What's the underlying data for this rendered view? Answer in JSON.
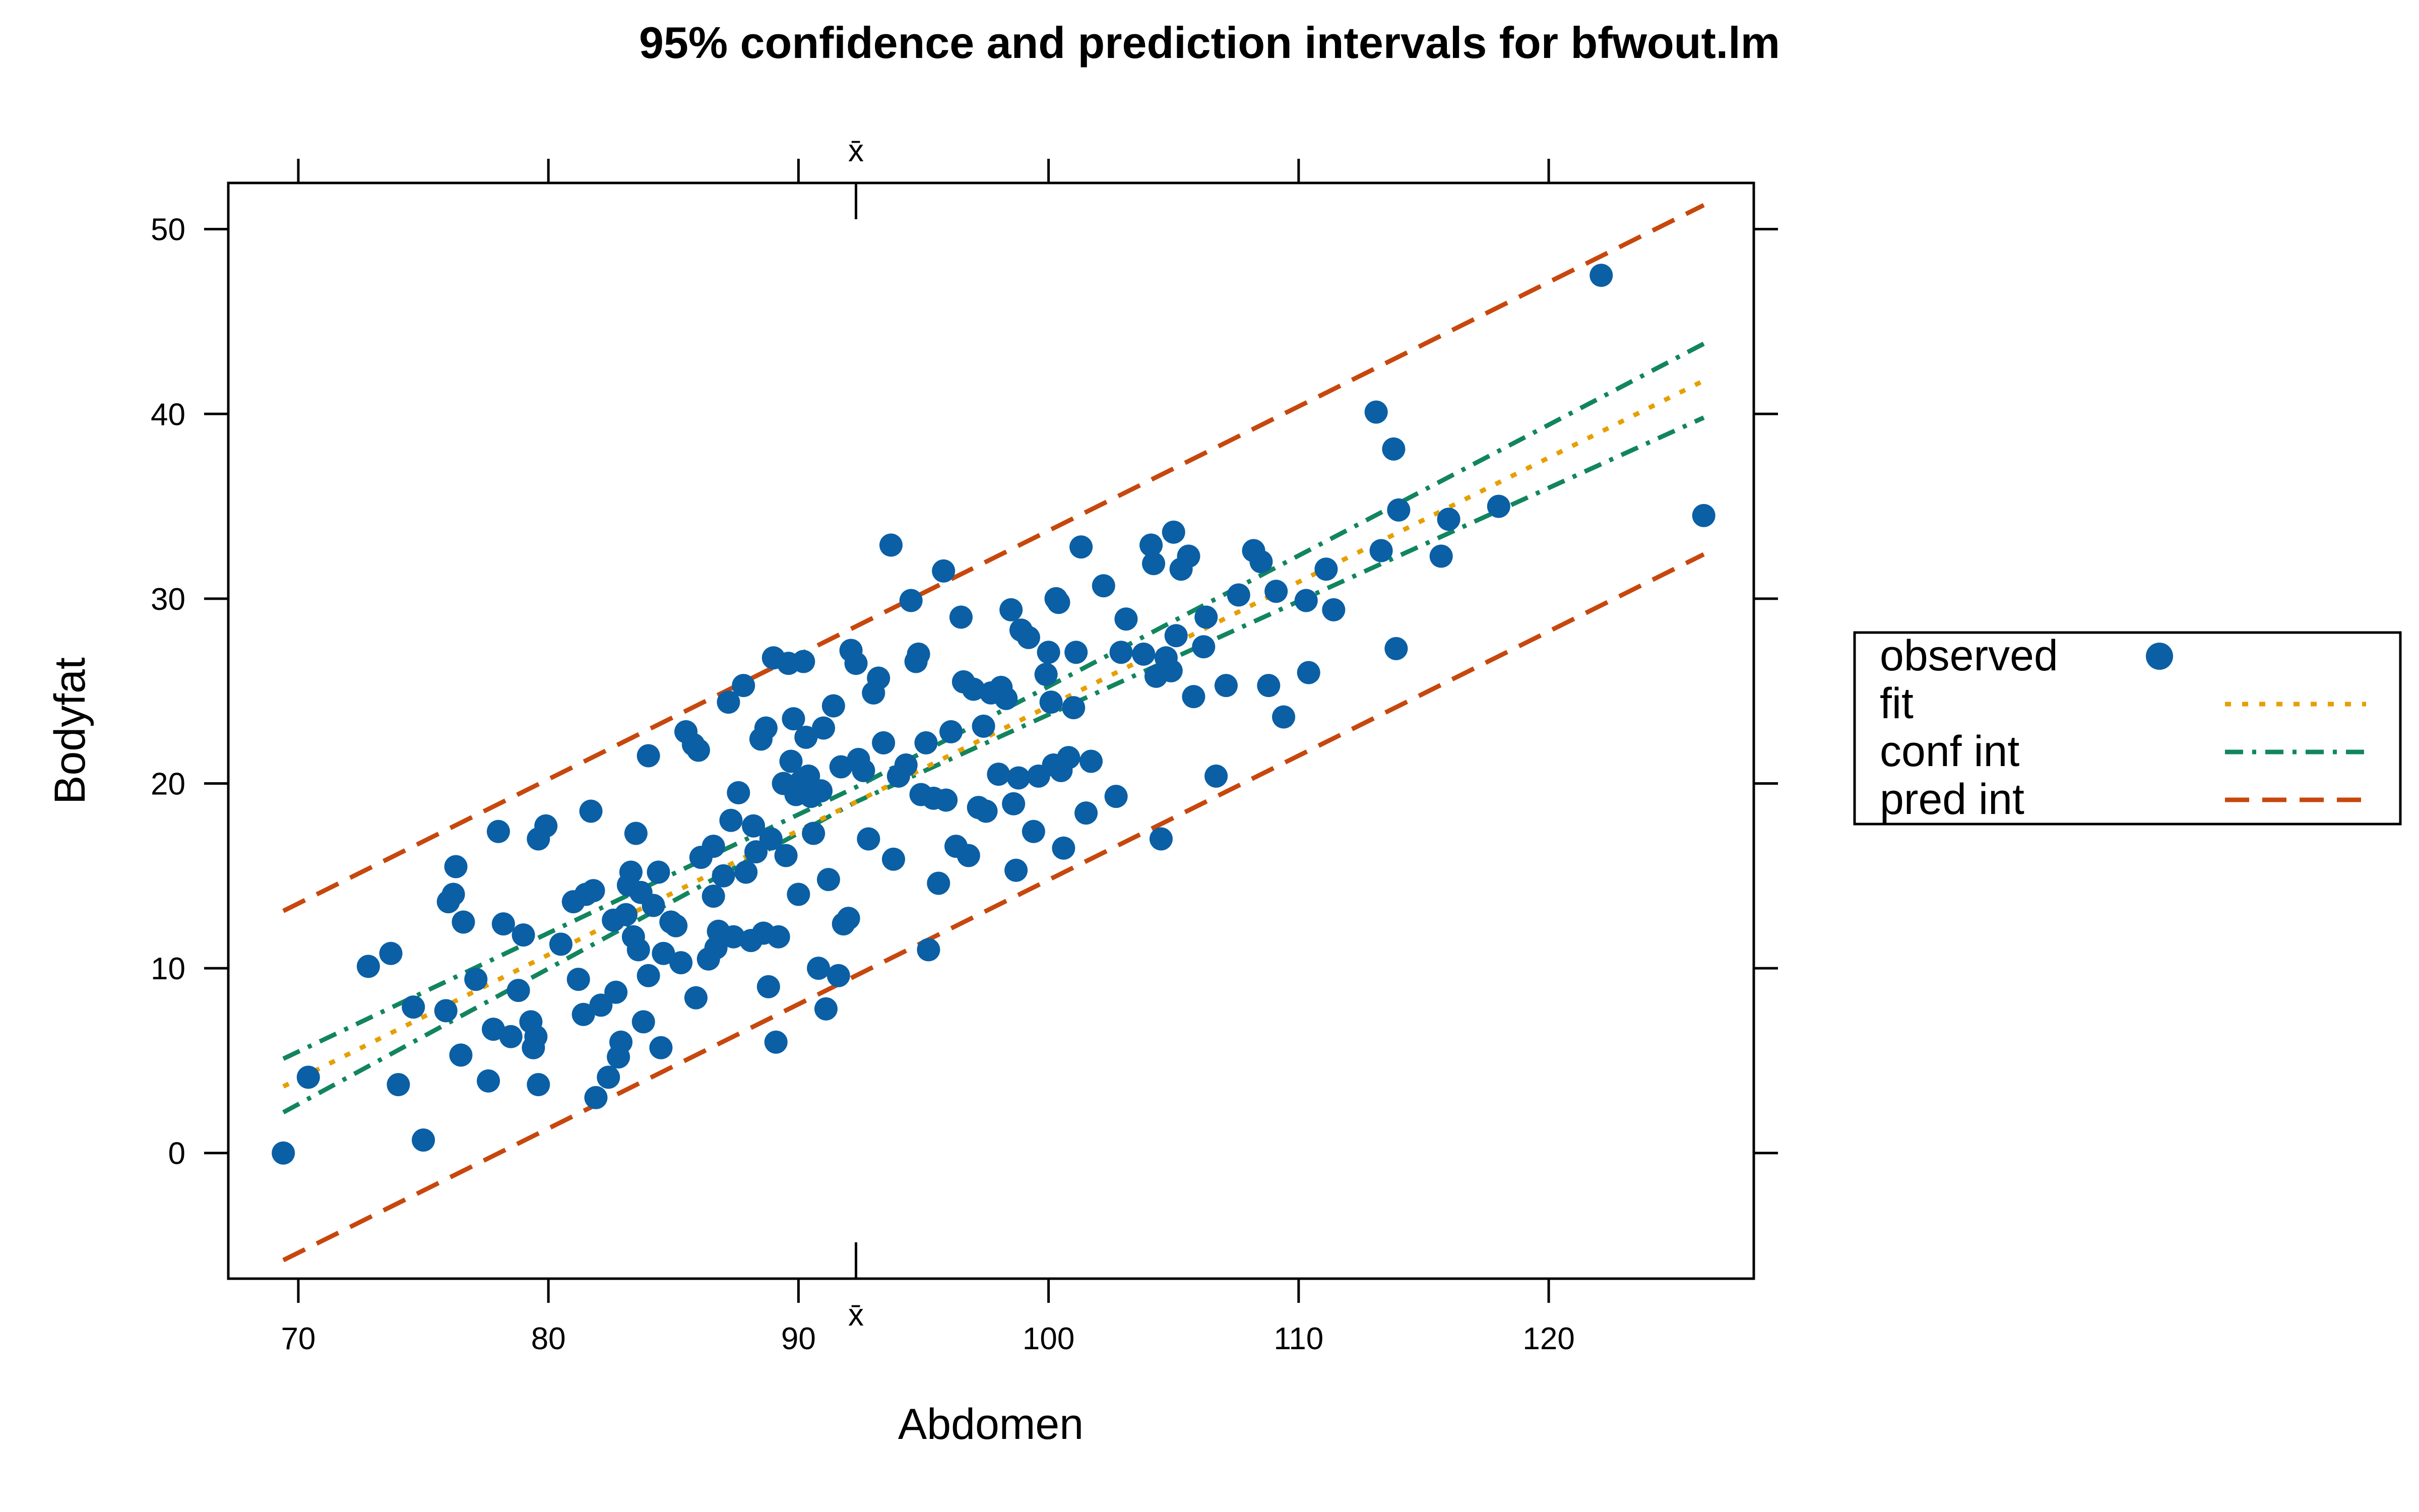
{
  "chart_data": {
    "type": "scatter",
    "title": "95% confidence and prediction intervals for bfwout.lm",
    "xlabel": "Abdomen",
    "ylabel": "Bodyfat",
    "xlim": [
      67.2,
      128.2
    ],
    "ylim": [
      -6.8,
      52.5
    ],
    "xticks": [
      70,
      80,
      90,
      100,
      110,
      120
    ],
    "yticks": [
      0,
      10,
      20,
      30,
      40,
      50
    ],
    "xbar": {
      "label": "x̄",
      "value": 92.3
    },
    "colors": {
      "observed": "#0b5fa5",
      "fit": "#e69f00",
      "conf": "#12855e",
      "pred": "#c7470d"
    },
    "legend": {
      "placement": "right",
      "entries": [
        {
          "key": "observed",
          "label": "observed"
        },
        {
          "key": "fit",
          "label": "fit"
        },
        {
          "key": "conf",
          "label": "conf int"
        },
        {
          "key": "pred",
          "label": "pred int"
        }
      ]
    },
    "lines": {
      "fit": {
        "x": [
          69.4,
          126.2
        ],
        "y": [
          3.6,
          41.8
        ]
      },
      "conf_lower": {
        "x": [
          69.4,
          92.3,
          126.2
        ],
        "y": [
          2.2,
          19.0,
          39.8
        ]
      },
      "conf_upper": {
        "x": [
          69.4,
          92.3,
          126.2
        ],
        "y": [
          5.1,
          19.8,
          43.8
        ]
      },
      "pred_lower": {
        "x": [
          69.4,
          126.2
        ],
        "y": [
          -5.8,
          32.4
        ]
      },
      "pred_upper": {
        "x": [
          69.4,
          126.2
        ],
        "y": [
          13.1,
          51.3
        ]
      }
    },
    "observed": [
      [
        69.4,
        0.0
      ],
      [
        70.4,
        4.1
      ],
      [
        72.8,
        10.1
      ],
      [
        73.7,
        10.8
      ],
      [
        74.0,
        3.7
      ],
      [
        74.6,
        7.9
      ],
      [
        75.0,
        0.7
      ],
      [
        75.9,
        7.7
      ],
      [
        76.0,
        13.6
      ],
      [
        76.2,
        14.0
      ],
      [
        76.3,
        15.5
      ],
      [
        76.5,
        5.3
      ],
      [
        76.6,
        12.5
      ],
      [
        77.1,
        9.4
      ],
      [
        77.6,
        3.9
      ],
      [
        77.8,
        6.7
      ],
      [
        78.0,
        17.4
      ],
      [
        78.2,
        12.4
      ],
      [
        78.5,
        6.3
      ],
      [
        78.8,
        8.8
      ],
      [
        79.0,
        11.8
      ],
      [
        79.3,
        7.1
      ],
      [
        79.4,
        5.7
      ],
      [
        79.5,
        6.3
      ],
      [
        79.6,
        17.0
      ],
      [
        79.6,
        3.7
      ],
      [
        79.9,
        17.7
      ],
      [
        80.5,
        11.3
      ],
      [
        81.0,
        13.6
      ],
      [
        81.2,
        9.4
      ],
      [
        81.4,
        7.5
      ],
      [
        81.5,
        14.0
      ],
      [
        81.7,
        18.5
      ],
      [
        81.8,
        14.2
      ],
      [
        81.9,
        3.0
      ],
      [
        82.1,
        8.0
      ],
      [
        82.4,
        4.1
      ],
      [
        82.6,
        12.6
      ],
      [
        82.7,
        8.7
      ],
      [
        82.8,
        5.2
      ],
      [
        82.9,
        6.0
      ],
      [
        83.1,
        12.9
      ],
      [
        83.2,
        14.5
      ],
      [
        83.3,
        15.2
      ],
      [
        83.4,
        11.7
      ],
      [
        83.5,
        17.3
      ],
      [
        83.6,
        11.0
      ],
      [
        83.7,
        14.1
      ],
      [
        83.8,
        7.1
      ],
      [
        84.0,
        9.6
      ],
      [
        84.0,
        21.5
      ],
      [
        84.2,
        13.4
      ],
      [
        84.4,
        15.2
      ],
      [
        84.5,
        5.7
      ],
      [
        84.6,
        10.8
      ],
      [
        84.9,
        12.5
      ],
      [
        85.1,
        12.3
      ],
      [
        85.3,
        10.3
      ],
      [
        85.5,
        22.8
      ],
      [
        85.8,
        22.1
      ],
      [
        85.9,
        8.4
      ],
      [
        86.0,
        21.8
      ],
      [
        86.1,
        16.0
      ],
      [
        86.4,
        10.5
      ],
      [
        86.6,
        13.9
      ],
      [
        86.6,
        16.6
      ],
      [
        86.7,
        11.1
      ],
      [
        86.8,
        12.0
      ],
      [
        87.0,
        15.0
      ],
      [
        87.2,
        24.4
      ],
      [
        87.3,
        18.0
      ],
      [
        87.4,
        11.7
      ],
      [
        87.6,
        19.5
      ],
      [
        87.8,
        25.3
      ],
      [
        87.9,
        15.2
      ],
      [
        88.1,
        11.5
      ],
      [
        88.2,
        17.7
      ],
      [
        88.3,
        16.3
      ],
      [
        88.5,
        22.4
      ],
      [
        88.6,
        11.9
      ],
      [
        88.7,
        23.0
      ],
      [
        88.8,
        9.0
      ],
      [
        88.9,
        17.0
      ],
      [
        89.0,
        26.8
      ],
      [
        89.1,
        6.0
      ],
      [
        89.2,
        11.7
      ],
      [
        89.4,
        20.0
      ],
      [
        89.5,
        16.1
      ],
      [
        89.6,
        26.5
      ],
      [
        89.7,
        21.2
      ],
      [
        89.8,
        23.5
      ],
      [
        89.9,
        19.4
      ],
      [
        90.0,
        14.0
      ],
      [
        90.1,
        20.1
      ],
      [
        90.2,
        26.6
      ],
      [
        90.3,
        22.5
      ],
      [
        90.4,
        20.4
      ],
      [
        90.5,
        19.3
      ],
      [
        90.6,
        17.3
      ],
      [
        90.8,
        10.0
      ],
      [
        90.9,
        19.6
      ],
      [
        91.0,
        23.0
      ],
      [
        91.1,
        7.8
      ],
      [
        91.2,
        14.8
      ],
      [
        91.4,
        24.2
      ],
      [
        91.6,
        9.6
      ],
      [
        91.7,
        20.9
      ],
      [
        91.8,
        12.4
      ],
      [
        92.0,
        12.7
      ],
      [
        92.1,
        27.2
      ],
      [
        92.3,
        26.5
      ],
      [
        92.4,
        21.3
      ],
      [
        92.6,
        20.7
      ],
      [
        92.8,
        17.0
      ],
      [
        93.0,
        24.9
      ],
      [
        93.2,
        25.7
      ],
      [
        93.4,
        22.2
      ],
      [
        93.7,
        32.9
      ],
      [
        93.8,
        15.9
      ],
      [
        94.0,
        20.4
      ],
      [
        94.3,
        21.0
      ],
      [
        94.5,
        29.9
      ],
      [
        94.7,
        26.6
      ],
      [
        94.8,
        27.0
      ],
      [
        94.9,
        19.4
      ],
      [
        95.1,
        22.2
      ],
      [
        95.2,
        11.0
      ],
      [
        95.4,
        19.2
      ],
      [
        95.6,
        14.6
      ],
      [
        95.8,
        31.5
      ],
      [
        95.9,
        19.1
      ],
      [
        96.1,
        22.8
      ],
      [
        96.3,
        16.6
      ],
      [
        96.5,
        29.0
      ],
      [
        96.6,
        25.5
      ],
      [
        96.8,
        16.1
      ],
      [
        97.0,
        25.1
      ],
      [
        97.2,
        18.7
      ],
      [
        97.4,
        23.1
      ],
      [
        97.5,
        18.5
      ],
      [
        97.7,
        24.9
      ],
      [
        98.0,
        20.5
      ],
      [
        98.1,
        25.2
      ],
      [
        98.3,
        24.6
      ],
      [
        98.5,
        29.4
      ],
      [
        98.6,
        18.9
      ],
      [
        98.7,
        15.3
      ],
      [
        98.8,
        20.3
      ],
      [
        98.9,
        28.3
      ],
      [
        99.2,
        27.9
      ],
      [
        99.4,
        17.4
      ],
      [
        99.6,
        20.4
      ],
      [
        99.9,
        25.9
      ],
      [
        100.0,
        27.1
      ],
      [
        100.1,
        24.4
      ],
      [
        100.2,
        21.0
      ],
      [
        100.3,
        30.0
      ],
      [
        100.4,
        29.8
      ],
      [
        100.5,
        20.7
      ],
      [
        100.6,
        16.5
      ],
      [
        100.8,
        21.4
      ],
      [
        101.0,
        24.1
      ],
      [
        101.1,
        27.1
      ],
      [
        101.3,
        32.8
      ],
      [
        101.5,
        18.4
      ],
      [
        101.7,
        21.2
      ],
      [
        102.2,
        30.7
      ],
      [
        102.7,
        19.3
      ],
      [
        102.9,
        27.1
      ],
      [
        103.1,
        28.9
      ],
      [
        103.8,
        27.0
      ],
      [
        104.1,
        32.9
      ],
      [
        104.2,
        31.9
      ],
      [
        104.3,
        25.8
      ],
      [
        104.5,
        17.0
      ],
      [
        104.7,
        26.8
      ],
      [
        104.9,
        26.1
      ],
      [
        105.0,
        33.6
      ],
      [
        105.1,
        28.0
      ],
      [
        105.3,
        31.6
      ],
      [
        105.6,
        32.3
      ],
      [
        105.8,
        24.7
      ],
      [
        106.2,
        27.4
      ],
      [
        106.3,
        29.0
      ],
      [
        106.7,
        20.4
      ],
      [
        107.1,
        25.3
      ],
      [
        107.6,
        30.2
      ],
      [
        108.2,
        32.6
      ],
      [
        108.5,
        32.0
      ],
      [
        108.8,
        25.3
      ],
      [
        109.1,
        30.4
      ],
      [
        109.4,
        23.6
      ],
      [
        110.3,
        29.9
      ],
      [
        110.4,
        26.0
      ],
      [
        111.1,
        31.6
      ],
      [
        111.4,
        29.4
      ],
      [
        113.1,
        40.1
      ],
      [
        113.3,
        32.6
      ],
      [
        113.8,
        38.1
      ],
      [
        113.9,
        27.3
      ],
      [
        114.0,
        34.8
      ],
      [
        115.7,
        32.3
      ],
      [
        116.0,
        34.3
      ],
      [
        118.0,
        35.0
      ],
      [
        122.1,
        47.5
      ],
      [
        126.2,
        34.5
      ]
    ]
  }
}
